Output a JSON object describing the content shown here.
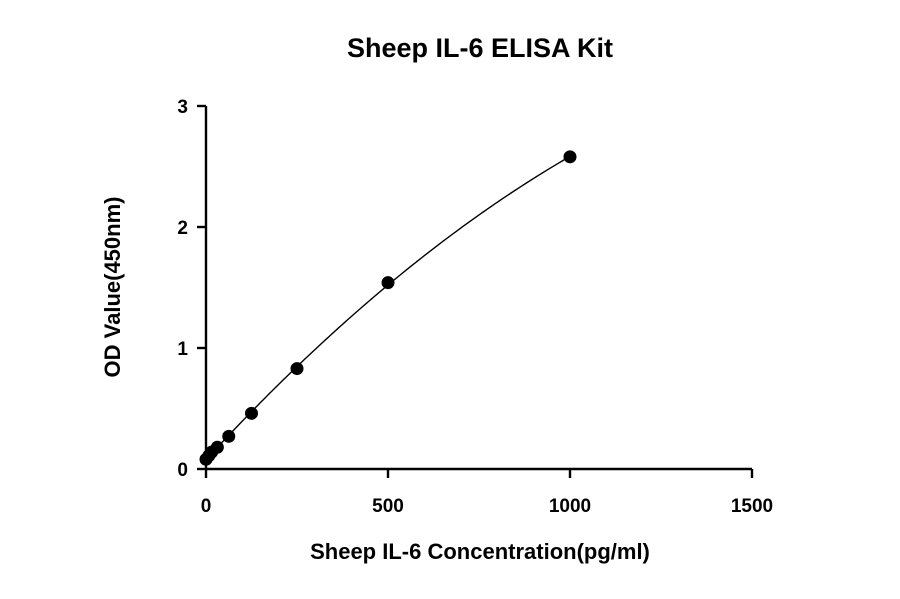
{
  "chart_data": {
    "type": "scatter",
    "title": "Sheep IL-6 ELISA Kit",
    "xlabel": "Sheep IL-6 Concentration(pg/ml)",
    "ylabel": "OD Value(450nm)",
    "xlim": [
      0,
      1500
    ],
    "ylim": [
      0,
      3
    ],
    "x_ticks": [
      0,
      500,
      1000,
      1500
    ],
    "y_ticks": [
      0,
      1,
      2,
      3
    ],
    "grid": false,
    "marker_color": "#000000",
    "series": [
      {
        "x": [
          0,
          7.8,
          15.6,
          31.2,
          62.5,
          125,
          250,
          500,
          1000
        ],
        "y": [
          0.08,
          0.11,
          0.14,
          0.18,
          0.27,
          0.46,
          0.83,
          1.54,
          2.58
        ],
        "fit_curve": true
      }
    ]
  }
}
